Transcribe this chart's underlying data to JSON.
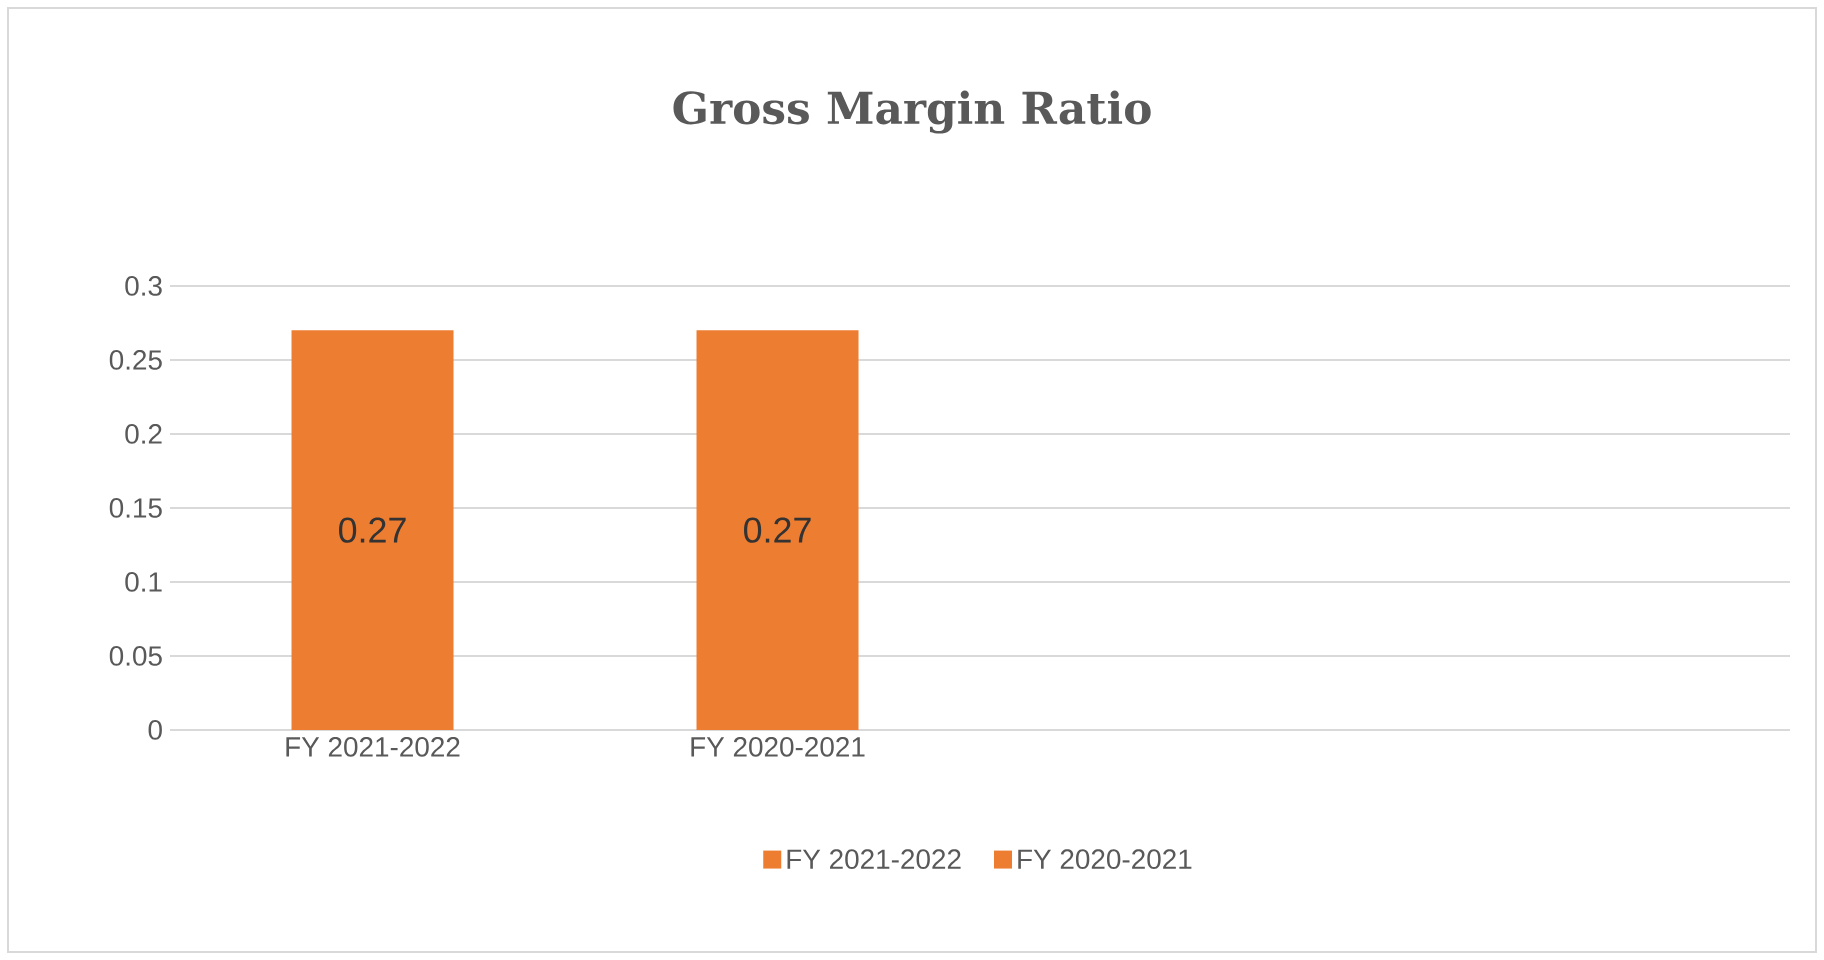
{
  "chart_data": {
    "type": "bar",
    "title": "Gross Margin Ratio",
    "categories": [
      "FY 2021-2022",
      "FY 2020-2021",
      null,
      null
    ],
    "series": [
      {
        "name": "FY 2021-2022",
        "color": "#ed7d31",
        "values": [
          0.27,
          null,
          null,
          null
        ]
      },
      {
        "name": "FY 2020-2021",
        "color": "#ed7d31",
        "values": [
          null,
          0.27,
          null,
          null
        ]
      }
    ],
    "ylim": [
      0,
      0.3
    ],
    "yticks": [
      0,
      0.05,
      0.1,
      0.15,
      0.2,
      0.25,
      0.3
    ],
    "grid": "y",
    "legend": "bottom",
    "data_labels": true
  }
}
